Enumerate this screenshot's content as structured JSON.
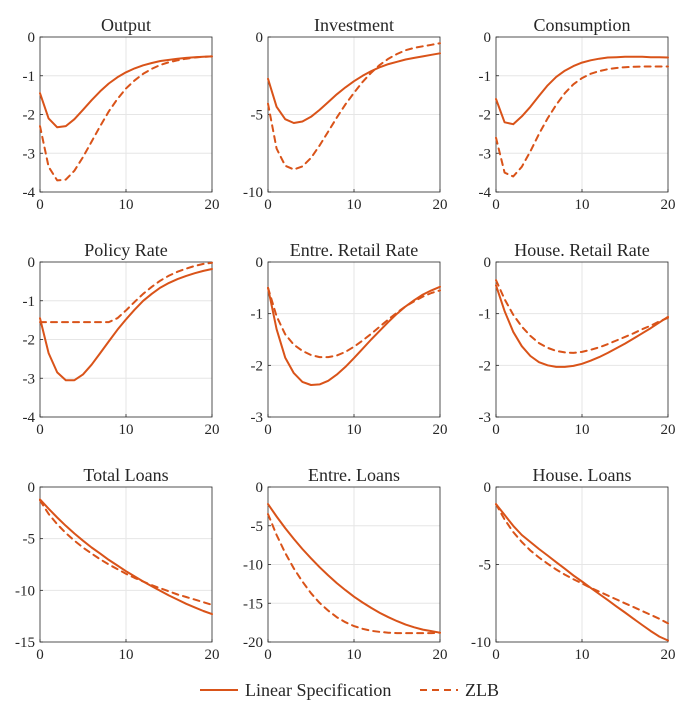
{
  "figure": {
    "legend": {
      "placement": "bottom-center",
      "entries": [
        "Linear Specification",
        "ZLB"
      ]
    }
  },
  "colors": {
    "series": "#d95319",
    "grid": "#e6e6e6",
    "axis": "#262626"
  },
  "chart_data": [
    {
      "type": "line",
      "title": "Output",
      "grid": true,
      "xlim": [
        0,
        20
      ],
      "ylim": [
        -4,
        0
      ],
      "x_ticks": [
        0,
        10,
        20
      ],
      "y_ticks": [
        0,
        -1,
        -2,
        -3,
        -4
      ],
      "x": [
        0,
        1,
        2,
        3,
        4,
        5,
        6,
        7,
        8,
        9,
        10,
        11,
        12,
        13,
        14,
        15,
        16,
        17,
        18,
        19,
        20
      ],
      "series": [
        {
          "name": "Linear Specification",
          "style": "solid",
          "values": [
            -1.45,
            -2.1,
            -2.33,
            -2.3,
            -2.12,
            -1.88,
            -1.63,
            -1.4,
            -1.2,
            -1.04,
            -0.91,
            -0.81,
            -0.73,
            -0.67,
            -0.62,
            -0.59,
            -0.56,
            -0.54,
            -0.52,
            -0.51,
            -0.5
          ]
        },
        {
          "name": "ZLB",
          "style": "dashed",
          "values": [
            -2.3,
            -3.35,
            -3.7,
            -3.68,
            -3.45,
            -3.1,
            -2.7,
            -2.3,
            -1.92,
            -1.6,
            -1.33,
            -1.12,
            -0.95,
            -0.82,
            -0.72,
            -0.65,
            -0.6,
            -0.56,
            -0.53,
            -0.51,
            -0.5
          ]
        }
      ]
    },
    {
      "type": "line",
      "title": "Investment",
      "grid": true,
      "xlim": [
        0,
        20
      ],
      "ylim": [
        -10,
        0
      ],
      "x_ticks": [
        0,
        10,
        20
      ],
      "y_ticks": [
        0,
        -5,
        -10
      ],
      "x": [
        0,
        1,
        2,
        3,
        4,
        5,
        6,
        7,
        8,
        9,
        10,
        11,
        12,
        13,
        14,
        15,
        16,
        17,
        18,
        19,
        20
      ],
      "series": [
        {
          "name": "Linear Specification",
          "style": "solid",
          "values": [
            -2.7,
            -4.5,
            -5.3,
            -5.55,
            -5.45,
            -5.15,
            -4.7,
            -4.2,
            -3.7,
            -3.25,
            -2.85,
            -2.5,
            -2.2,
            -1.95,
            -1.75,
            -1.6,
            -1.45,
            -1.35,
            -1.25,
            -1.15,
            -1.05
          ]
        },
        {
          "name": "ZLB",
          "style": "dashed",
          "values": [
            -4.3,
            -7.2,
            -8.3,
            -8.55,
            -8.35,
            -7.8,
            -7.0,
            -6.1,
            -5.2,
            -4.35,
            -3.6,
            -2.9,
            -2.3,
            -1.8,
            -1.4,
            -1.1,
            -0.85,
            -0.7,
            -0.6,
            -0.5,
            -0.4
          ]
        }
      ]
    },
    {
      "type": "line",
      "title": "Consumption",
      "grid": true,
      "xlim": [
        0,
        20
      ],
      "ylim": [
        -4,
        0
      ],
      "x_ticks": [
        0,
        10,
        20
      ],
      "y_ticks": [
        0,
        -1,
        -2,
        -3,
        -4
      ],
      "x": [
        0,
        1,
        2,
        3,
        4,
        5,
        6,
        7,
        8,
        9,
        10,
        11,
        12,
        13,
        14,
        15,
        16,
        17,
        18,
        19,
        20
      ],
      "series": [
        {
          "name": "Linear Specification",
          "style": "solid",
          "values": [
            -1.6,
            -2.2,
            -2.25,
            -2.05,
            -1.8,
            -1.52,
            -1.25,
            -1.03,
            -0.87,
            -0.75,
            -0.66,
            -0.6,
            -0.56,
            -0.53,
            -0.52,
            -0.51,
            -0.51,
            -0.51,
            -0.52,
            -0.52,
            -0.53
          ]
        },
        {
          "name": "ZLB",
          "style": "dashed",
          "values": [
            -2.6,
            -3.5,
            -3.6,
            -3.35,
            -2.95,
            -2.5,
            -2.1,
            -1.75,
            -1.45,
            -1.22,
            -1.06,
            -0.95,
            -0.88,
            -0.83,
            -0.8,
            -0.78,
            -0.77,
            -0.76,
            -0.76,
            -0.76,
            -0.76
          ]
        }
      ]
    },
    {
      "type": "line",
      "title": "Policy Rate",
      "grid": true,
      "xlim": [
        0,
        20
      ],
      "ylim": [
        -4,
        0
      ],
      "x_ticks": [
        0,
        10,
        20
      ],
      "y_ticks": [
        0,
        -1,
        -2,
        -3,
        -4
      ],
      "x": [
        0,
        1,
        2,
        3,
        4,
        5,
        6,
        7,
        8,
        9,
        10,
        11,
        12,
        13,
        14,
        15,
        16,
        17,
        18,
        19,
        20
      ],
      "series": [
        {
          "name": "Linear Specification",
          "style": "solid",
          "values": [
            -1.45,
            -2.35,
            -2.85,
            -3.05,
            -3.05,
            -2.9,
            -2.65,
            -2.35,
            -2.05,
            -1.75,
            -1.48,
            -1.23,
            -1.0,
            -0.82,
            -0.66,
            -0.54,
            -0.44,
            -0.36,
            -0.29,
            -0.23,
            -0.18
          ]
        },
        {
          "name": "ZLB",
          "style": "dashed",
          "values": [
            -1.55,
            -1.55,
            -1.55,
            -1.55,
            -1.55,
            -1.55,
            -1.55,
            -1.55,
            -1.55,
            -1.45,
            -1.25,
            -1.03,
            -0.82,
            -0.64,
            -0.48,
            -0.35,
            -0.25,
            -0.17,
            -0.1,
            -0.05,
            -0.02
          ]
        }
      ]
    },
    {
      "type": "line",
      "title": "Entre. Retail Rate",
      "grid": true,
      "xlim": [
        0,
        20
      ],
      "ylim": [
        -3,
        0
      ],
      "x_ticks": [
        0,
        10,
        20
      ],
      "y_ticks": [
        0,
        -1,
        -2,
        -3
      ],
      "x": [
        0,
        1,
        2,
        3,
        4,
        5,
        6,
        7,
        8,
        9,
        10,
        11,
        12,
        13,
        14,
        15,
        16,
        17,
        18,
        19,
        20
      ],
      "series": [
        {
          "name": "Linear Specification",
          "style": "solid",
          "values": [
            -0.5,
            -1.3,
            -1.85,
            -2.15,
            -2.32,
            -2.38,
            -2.37,
            -2.3,
            -2.18,
            -2.03,
            -1.86,
            -1.68,
            -1.5,
            -1.33,
            -1.16,
            -1.0,
            -0.86,
            -0.74,
            -0.63,
            -0.55,
            -0.48
          ]
        },
        {
          "name": "ZLB",
          "style": "dashed",
          "values": [
            -0.5,
            -1.05,
            -1.4,
            -1.6,
            -1.72,
            -1.8,
            -1.84,
            -1.84,
            -1.81,
            -1.74,
            -1.64,
            -1.52,
            -1.39,
            -1.25,
            -1.11,
            -0.98,
            -0.86,
            -0.76,
            -0.67,
            -0.6,
            -0.55
          ]
        }
      ]
    },
    {
      "type": "line",
      "title": "House. Retail Rate",
      "grid": true,
      "xlim": [
        0,
        20
      ],
      "ylim": [
        -3,
        0
      ],
      "x_ticks": [
        0,
        10,
        20
      ],
      "y_ticks": [
        0,
        -1,
        -2,
        -3
      ],
      "x": [
        0,
        1,
        2,
        3,
        4,
        5,
        6,
        7,
        8,
        9,
        10,
        11,
        12,
        13,
        14,
        15,
        16,
        17,
        18,
        19,
        20
      ],
      "series": [
        {
          "name": "Linear Specification",
          "style": "solid",
          "values": [
            -0.45,
            -0.95,
            -1.35,
            -1.63,
            -1.82,
            -1.94,
            -2.0,
            -2.03,
            -2.03,
            -2.01,
            -1.97,
            -1.91,
            -1.84,
            -1.76,
            -1.67,
            -1.58,
            -1.48,
            -1.38,
            -1.28,
            -1.17,
            -1.06
          ]
        },
        {
          "name": "ZLB",
          "style": "dashed",
          "values": [
            -0.35,
            -0.72,
            -1.02,
            -1.25,
            -1.43,
            -1.57,
            -1.66,
            -1.72,
            -1.75,
            -1.76,
            -1.74,
            -1.7,
            -1.65,
            -1.59,
            -1.52,
            -1.45,
            -1.38,
            -1.3,
            -1.23,
            -1.15,
            -1.08
          ]
        }
      ]
    },
    {
      "type": "line",
      "title": "Total Loans",
      "grid": true,
      "xlim": [
        0,
        20
      ],
      "ylim": [
        -15,
        0
      ],
      "x_ticks": [
        0,
        10,
        20
      ],
      "y_ticks": [
        0,
        -5,
        -10,
        -15
      ],
      "x": [
        0,
        1,
        2,
        3,
        4,
        5,
        6,
        7,
        8,
        9,
        10,
        11,
        12,
        13,
        14,
        15,
        16,
        17,
        18,
        19,
        20
      ],
      "series": [
        {
          "name": "Linear Specification",
          "style": "solid",
          "values": [
            -1.2,
            -2.1,
            -2.95,
            -3.75,
            -4.5,
            -5.2,
            -5.85,
            -6.45,
            -7.05,
            -7.6,
            -8.15,
            -8.65,
            -9.15,
            -9.6,
            -10.05,
            -10.5,
            -10.9,
            -11.3,
            -11.65,
            -12.0,
            -12.3
          ]
        },
        {
          "name": "ZLB",
          "style": "dashed",
          "values": [
            -1.3,
            -2.6,
            -3.6,
            -4.45,
            -5.2,
            -5.85,
            -6.45,
            -7.0,
            -7.5,
            -7.95,
            -8.4,
            -8.8,
            -9.15,
            -9.5,
            -9.8,
            -10.1,
            -10.4,
            -10.65,
            -10.9,
            -11.15,
            -11.4
          ]
        }
      ]
    },
    {
      "type": "line",
      "title": "Entre. Loans",
      "grid": true,
      "xlim": [
        0,
        20
      ],
      "ylim": [
        -20,
        0
      ],
      "x_ticks": [
        0,
        10,
        20
      ],
      "y_ticks": [
        0,
        -5,
        -10,
        -15,
        -20
      ],
      "x": [
        0,
        1,
        2,
        3,
        4,
        5,
        6,
        7,
        8,
        9,
        10,
        11,
        12,
        13,
        14,
        15,
        16,
        17,
        18,
        19,
        20
      ],
      "series": [
        {
          "name": "Linear Specification",
          "style": "solid",
          "values": [
            -2.2,
            -3.8,
            -5.3,
            -6.7,
            -8.0,
            -9.2,
            -10.35,
            -11.4,
            -12.4,
            -13.3,
            -14.15,
            -14.9,
            -15.6,
            -16.25,
            -16.8,
            -17.3,
            -17.75,
            -18.1,
            -18.4,
            -18.6,
            -18.8
          ]
        },
        {
          "name": "ZLB",
          "style": "dashed",
          "values": [
            -3.5,
            -6.2,
            -8.5,
            -10.5,
            -12.2,
            -13.7,
            -14.95,
            -15.95,
            -16.8,
            -17.45,
            -17.95,
            -18.3,
            -18.55,
            -18.7,
            -18.8,
            -18.85,
            -18.85,
            -18.85,
            -18.85,
            -18.85,
            -18.8
          ]
        }
      ]
    },
    {
      "type": "line",
      "title": "House. Loans",
      "grid": true,
      "xlim": [
        0,
        20
      ],
      "ylim": [
        -10,
        0
      ],
      "x_ticks": [
        0,
        10,
        20
      ],
      "y_ticks": [
        0,
        -5,
        -10
      ],
      "x": [
        0,
        1,
        2,
        3,
        4,
        5,
        6,
        7,
        8,
        9,
        10,
        11,
        12,
        13,
        14,
        15,
        16,
        17,
        18,
        19,
        20
      ],
      "series": [
        {
          "name": "Linear Specification",
          "style": "solid",
          "values": [
            -1.1,
            -1.8,
            -2.5,
            -3.1,
            -3.55,
            -4.0,
            -4.42,
            -4.85,
            -5.27,
            -5.7,
            -6.1,
            -6.5,
            -6.9,
            -7.3,
            -7.7,
            -8.1,
            -8.5,
            -8.9,
            -9.3,
            -9.65,
            -9.9
          ]
        },
        {
          "name": "ZLB",
          "style": "dashed",
          "values": [
            -1.1,
            -2.1,
            -2.9,
            -3.55,
            -4.1,
            -4.55,
            -4.95,
            -5.32,
            -5.65,
            -5.95,
            -6.22,
            -6.5,
            -6.75,
            -7.0,
            -7.25,
            -7.5,
            -7.75,
            -8.0,
            -8.25,
            -8.5,
            -8.8
          ]
        }
      ]
    }
  ]
}
